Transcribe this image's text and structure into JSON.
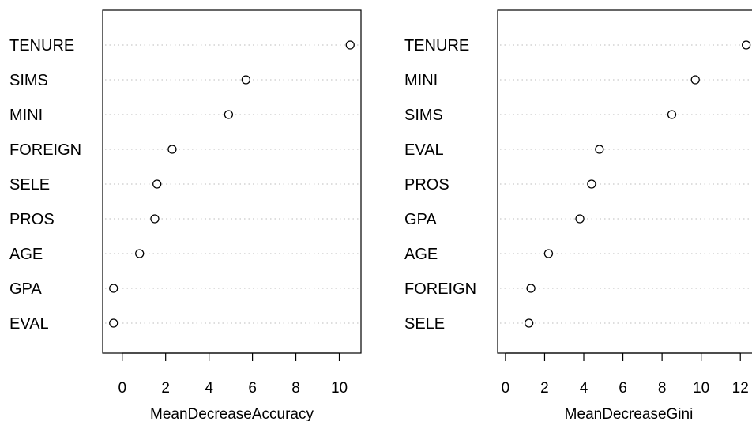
{
  "chart_data": [
    {
      "type": "scatter",
      "title": "",
      "xlabel": "MeanDecreaseAccuracy",
      "ylabel": "",
      "categories": [
        "TENURE",
        "SIMS",
        "MINI",
        "FOREIGN",
        "SELE",
        "PROS",
        "AGE",
        "GPA",
        "EVAL"
      ],
      "values": [
        10.5,
        5.7,
        4.9,
        2.3,
        1.6,
        1.5,
        0.8,
        -0.4,
        -0.4
      ],
      "xlim": [
        -0.9,
        11.0
      ],
      "xticks": [
        0,
        2,
        4,
        6,
        8,
        10
      ],
      "grid": "dotted horizontal",
      "marker": "open-circle"
    },
    {
      "type": "scatter",
      "title": "",
      "xlabel": "MeanDecreaseGini",
      "ylabel": "",
      "categories": [
        "TENURE",
        "MINI",
        "SIMS",
        "EVAL",
        "PROS",
        "GPA",
        "AGE",
        "FOREIGN",
        "SELE"
      ],
      "values": [
        12.3,
        9.7,
        8.5,
        4.8,
        4.4,
        3.8,
        2.2,
        1.3,
        1.2
      ],
      "xlim": [
        -0.4,
        13.0
      ],
      "xticks": [
        0,
        2,
        4,
        6,
        8,
        10,
        12
      ],
      "grid": "dotted horizontal",
      "marker": "open-circle"
    }
  ]
}
